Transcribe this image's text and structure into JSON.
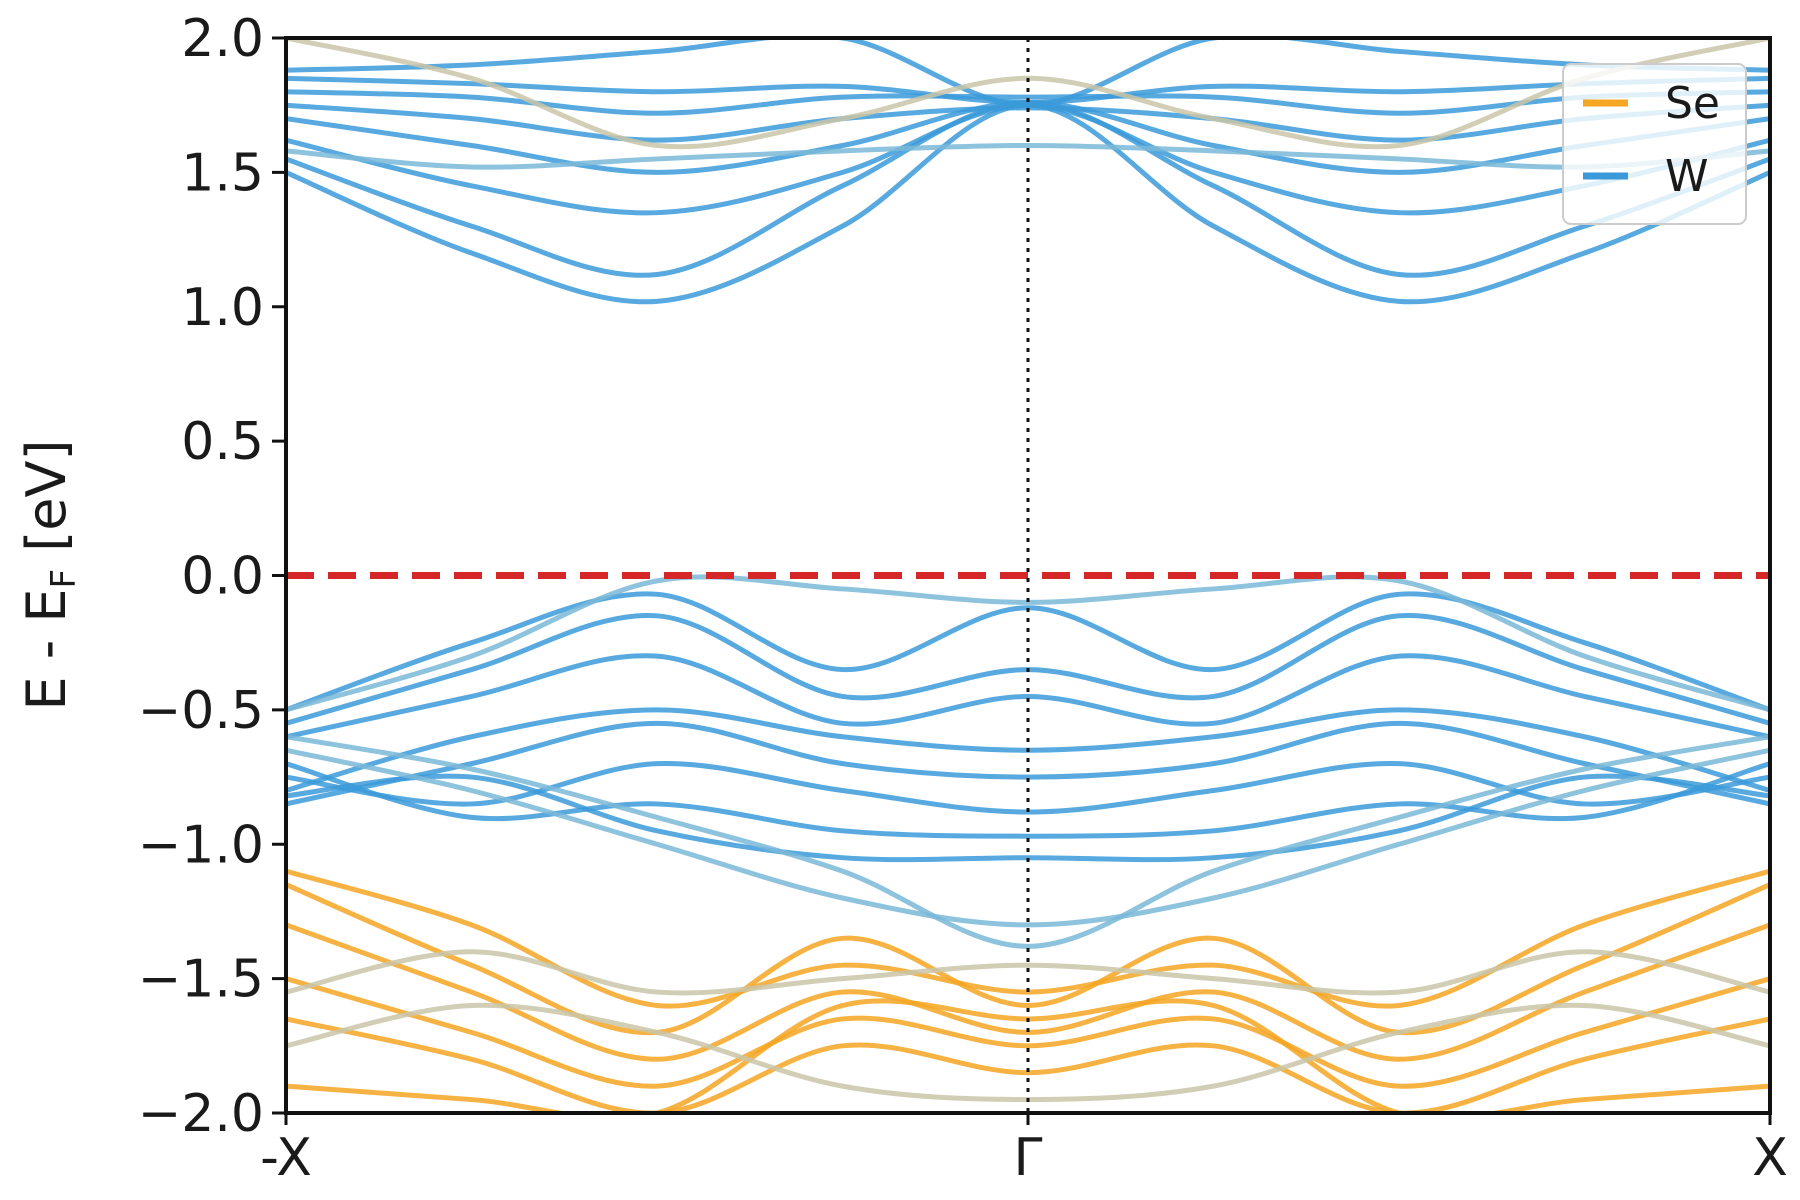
{
  "chart_data": {
    "type": "line",
    "title": "",
    "xlabel": "",
    "ylabel_main": "E - E",
    "ylabel_sub": "F",
    "ylabel_unit": " [eV]",
    "ylim": [
      -2.0,
      2.0
    ],
    "yticks": [
      {
        "value": 2.0,
        "label": "2.0"
      },
      {
        "value": 1.5,
        "label": "1.5"
      },
      {
        "value": 1.0,
        "label": "1.0"
      },
      {
        "value": 0.5,
        "label": "0.5"
      },
      {
        "value": 0.0,
        "label": "0.0"
      },
      {
        "value": -0.5,
        "label": "−0.5"
      },
      {
        "value": -1.0,
        "label": "−1.0"
      },
      {
        "value": -1.5,
        "label": "−1.5"
      },
      {
        "value": -2.0,
        "label": "−2.0"
      }
    ],
    "xlim": [
      -1,
      1
    ],
    "xticks": [
      {
        "value": -1,
        "label": "-X"
      },
      {
        "value": 0,
        "label": "Γ"
      },
      {
        "value": 1,
        "label": "X"
      }
    ],
    "fermi_level": 0.0,
    "fermi_color": "#d62728",
    "gamma_line": 0.0,
    "legend": {
      "placement": "top-right",
      "entries": [
        {
          "label": "Se",
          "color": "#f5a623"
        },
        {
          "label": "W",
          "color": "#3a9ad9"
        }
      ]
    },
    "bands": [
      {
        "name": "",
        "color": "#3a9ad9",
        "x": [
          -1,
          -0.75,
          -0.5,
          -0.25,
          0
        ],
        "y": [
          1.5,
          1.2,
          1.02,
          1.3,
          1.75
        ]
      },
      {
        "name": "",
        "color": "#3a9ad9",
        "x": [
          -1,
          -0.75,
          -0.5,
          -0.25,
          0
        ],
        "y": [
          1.55,
          1.3,
          1.12,
          1.45,
          1.76
        ]
      },
      {
        "name": "",
        "color": "#3a9ad9",
        "x": [
          -1,
          -0.75,
          -0.5,
          -0.25,
          0
        ],
        "y": [
          1.62,
          1.45,
          1.35,
          1.5,
          1.75
        ]
      },
      {
        "name": "",
        "color": "#3a9ad9",
        "x": [
          -1,
          -0.75,
          -0.5,
          -0.25,
          0
        ],
        "y": [
          1.7,
          1.6,
          1.5,
          1.6,
          1.76
        ]
      },
      {
        "name": "",
        "color": "#3a9ad9",
        "x": [
          -1,
          -0.75,
          -0.5,
          -0.25,
          0
        ],
        "y": [
          1.75,
          1.7,
          1.62,
          1.7,
          1.74
        ]
      },
      {
        "name": "",
        "color": "#3a9ad9",
        "x": [
          -1,
          -0.75,
          -0.5,
          -0.25,
          0
        ],
        "y": [
          1.8,
          1.78,
          1.72,
          1.78,
          1.78
        ]
      },
      {
        "name": "",
        "color": "#3a9ad9",
        "x": [
          -1,
          -0.75,
          -0.5,
          -0.25,
          0
        ],
        "y": [
          1.85,
          1.83,
          1.8,
          1.82,
          1.76
        ]
      },
      {
        "name": "",
        "color": "#3a9ad9",
        "x": [
          -1,
          -0.75,
          -0.5,
          -0.25,
          0
        ],
        "y": [
          1.88,
          1.9,
          1.95,
          2.0,
          1.75
        ]
      },
      {
        "name": "",
        "color": "#7ab8d8",
        "x": [
          -1,
          -0.75,
          -0.5,
          -0.25,
          0
        ],
        "y": [
          1.58,
          1.52,
          1.55,
          1.58,
          1.6
        ]
      },
      {
        "name": "",
        "color": "#c9c5a8",
        "x": [
          -1,
          -0.75,
          -0.5,
          -0.25,
          0
        ],
        "y": [
          2.0,
          1.85,
          1.6,
          1.7,
          1.85
        ]
      },
      {
        "name": "",
        "color": "#3a9ad9",
        "x": [
          -1,
          -0.75,
          -0.5,
          -0.25,
          0
        ],
        "y": [
          -0.5,
          -0.25,
          -0.07,
          -0.35,
          -0.12
        ]
      },
      {
        "name": "",
        "color": "#3a9ad9",
        "x": [
          -1,
          -0.75,
          -0.5,
          -0.25,
          0
        ],
        "y": [
          -0.55,
          -0.35,
          -0.15,
          -0.45,
          -0.35
        ]
      },
      {
        "name": "",
        "color": "#3a9ad9",
        "x": [
          -1,
          -0.75,
          -0.5,
          -0.25,
          0
        ],
        "y": [
          -0.6,
          -0.45,
          -0.3,
          -0.55,
          -0.45
        ]
      },
      {
        "name": "",
        "color": "#7ab8d8",
        "x": [
          -1,
          -0.75,
          -0.5,
          -0.25,
          0
        ],
        "y": [
          -0.5,
          -0.3,
          -0.02,
          -0.05,
          -0.1
        ]
      },
      {
        "name": "",
        "color": "#3a9ad9",
        "x": [
          -1,
          -0.75,
          -0.5,
          -0.25,
          0
        ],
        "y": [
          -0.8,
          -0.6,
          -0.5,
          -0.6,
          -0.65
        ]
      },
      {
        "name": "",
        "color": "#3a9ad9",
        "x": [
          -1,
          -0.75,
          -0.5,
          -0.25,
          0
        ],
        "y": [
          -0.85,
          -0.7,
          -0.55,
          -0.7,
          -0.75
        ]
      },
      {
        "name": "",
        "color": "#3a9ad9",
        "x": [
          -1,
          -0.75,
          -0.5,
          -0.25,
          0
        ],
        "y": [
          -0.75,
          -0.85,
          -0.7,
          -0.8,
          -0.88
        ]
      },
      {
        "name": "",
        "color": "#3a9ad9",
        "x": [
          -1,
          -0.75,
          -0.5,
          -0.25,
          0
        ],
        "y": [
          -0.7,
          -0.9,
          -0.85,
          -0.95,
          -0.97
        ]
      },
      {
        "name": "",
        "color": "#3a9ad9",
        "x": [
          -1,
          -0.75,
          -0.5,
          -0.25,
          0
        ],
        "y": [
          -0.82,
          -0.75,
          -0.95,
          -1.05,
          -1.05
        ]
      },
      {
        "name": "",
        "color": "#7ab8d8",
        "x": [
          -1,
          -0.75,
          -0.5,
          -0.25,
          0
        ],
        "y": [
          -0.65,
          -0.8,
          -1.0,
          -1.2,
          -1.3
        ]
      },
      {
        "name": "",
        "color": "#7ab8d8",
        "x": [
          -1,
          -0.75,
          -0.5,
          -0.25,
          0
        ],
        "y": [
          -0.6,
          -0.72,
          -0.9,
          -1.1,
          -1.38
        ]
      },
      {
        "name": "",
        "color": "#f5a623",
        "x": [
          -1,
          -0.75,
          -0.5,
          -0.25,
          0
        ],
        "y": [
          -1.1,
          -1.3,
          -1.6,
          -1.45,
          -1.55
        ]
      },
      {
        "name": "",
        "color": "#f5a623",
        "x": [
          -1,
          -0.75,
          -0.5,
          -0.25,
          0
        ],
        "y": [
          -1.15,
          -1.45,
          -1.7,
          -1.35,
          -1.6
        ]
      },
      {
        "name": "",
        "color": "#f5a623",
        "x": [
          -1,
          -0.75,
          -0.5,
          -0.25,
          0
        ],
        "y": [
          -1.3,
          -1.55,
          -1.8,
          -1.55,
          -1.7
        ]
      },
      {
        "name": "",
        "color": "#f5a623",
        "x": [
          -1,
          -0.75,
          -0.5,
          -0.25,
          0
        ],
        "y": [
          -1.5,
          -1.7,
          -1.9,
          -1.65,
          -1.75
        ]
      },
      {
        "name": "",
        "color": "#f5a623",
        "x": [
          -1,
          -0.75,
          -0.5,
          -0.25,
          0
        ],
        "y": [
          -1.65,
          -1.8,
          -2.0,
          -1.75,
          -1.85
        ]
      },
      {
        "name": "",
        "color": "#f5a623",
        "x": [
          -1,
          -0.75,
          -0.5,
          -0.25,
          0
        ],
        "y": [
          -1.9,
          -1.95,
          -2.0,
          -1.6,
          -1.65
        ]
      },
      {
        "name": "",
        "color": "#c9c5a8",
        "x": [
          -1,
          -0.75,
          -0.5,
          -0.25,
          0
        ],
        "y": [
          -1.55,
          -1.4,
          -1.55,
          -1.5,
          -1.45
        ]
      },
      {
        "name": "",
        "color": "#c9c5a8",
        "x": [
          -1,
          -0.75,
          -0.5,
          -0.25,
          0
        ],
        "y": [
          -1.75,
          -1.6,
          -1.7,
          -1.9,
          -1.95
        ]
      }
    ]
  }
}
